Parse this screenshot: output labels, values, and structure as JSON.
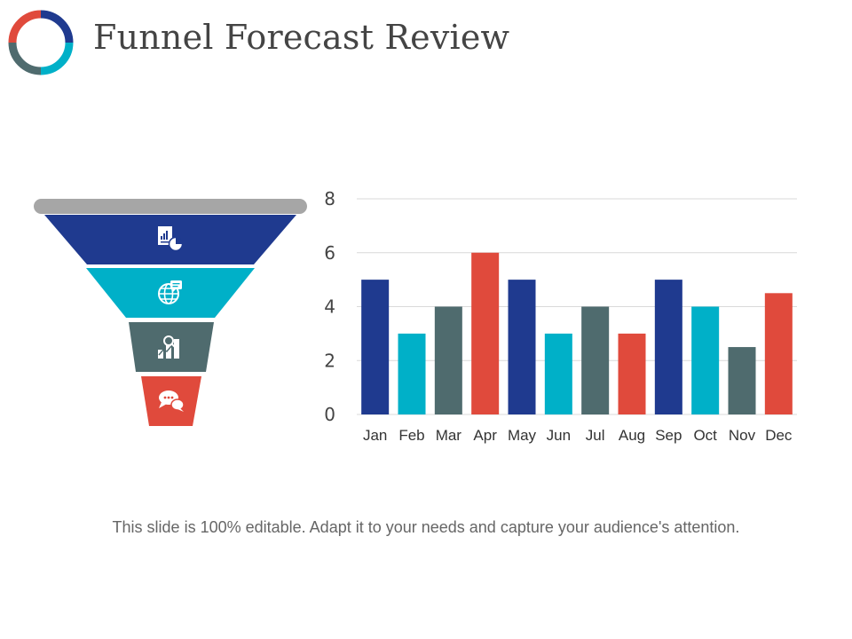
{
  "header": {
    "title": "Funnel Forecast Review",
    "logo_icon": "donut-ring-icon",
    "logo_colors": [
      "#1f3a8f",
      "#00b0c8",
      "#4f6b6e",
      "#e04a3c"
    ]
  },
  "funnel": {
    "stages": [
      {
        "icon": "report-chart-icon",
        "color": "#1f3a8f"
      },
      {
        "icon": "globe-chat-icon",
        "color": "#00b0c8"
      },
      {
        "icon": "growth-chart-icon",
        "color": "#4f6b6e"
      },
      {
        "icon": "speech-bubbles-icon",
        "color": "#e04a3c"
      }
    ],
    "rim_color": "#a6a6a6"
  },
  "chart_data": {
    "type": "bar",
    "categories": [
      "Jan",
      "Feb",
      "Mar",
      "Apr",
      "May",
      "Jun",
      "Jul",
      "Aug",
      "Sep",
      "Oct",
      "Nov",
      "Dec"
    ],
    "values": [
      5,
      3,
      4,
      6,
      5,
      3,
      4,
      3,
      5,
      4,
      2.5,
      4.5
    ],
    "colors": [
      "#1f3a8f",
      "#00b0c8",
      "#4f6b6e",
      "#e04a3c",
      "#1f3a8f",
      "#00b0c8",
      "#4f6b6e",
      "#e04a3c",
      "#1f3a8f",
      "#00b0c8",
      "#4f6b6e",
      "#e04a3c"
    ],
    "yticks": [
      0,
      2,
      4,
      6,
      8
    ],
    "ylim": [
      0,
      8
    ],
    "grid": true,
    "legend": false
  },
  "caption": "This slide is 100% editable. Adapt it to your needs and capture your audience's attention."
}
